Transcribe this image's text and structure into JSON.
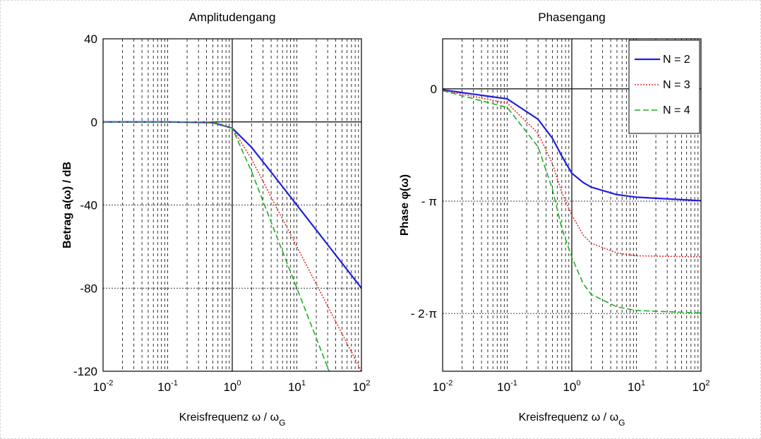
{
  "chart_data": [
    {
      "type": "line",
      "title": "Amplitudengang",
      "xlabel": "Kreisfrequenz ω / ωG",
      "xlabel_parts": {
        "main": "Kreisfrequenz ω / ω",
        "sub": "G"
      },
      "ylabel": "Betrag a(ω) / dB",
      "xscale": "log",
      "xlim": [
        0.01,
        100
      ],
      "ylim": [
        -120,
        40
      ],
      "xticks": [
        {
          "base": "10",
          "exp": "-2"
        },
        {
          "base": "10",
          "exp": "-1"
        },
        {
          "base": "10",
          "exp": "0"
        },
        {
          "base": "10",
          "exp": "1"
        },
        {
          "base": "10",
          "exp": "2"
        }
      ],
      "xtick_values": [
        0.01,
        0.1,
        1,
        10,
        100
      ],
      "yticks": [
        {
          "value": 40,
          "label": "40"
        },
        {
          "value": 0,
          "label": "0"
        },
        {
          "value": -40,
          "label": "-40"
        },
        {
          "value": -80,
          "label": "-80"
        },
        {
          "value": -120,
          "label": "-120"
        }
      ],
      "grid": true,
      "series": [
        {
          "key": "N2",
          "color": "#1f1fe0",
          "dash": "",
          "values": [
            [
              0.01,
              0
            ],
            [
              0.1,
              0
            ],
            [
              0.5,
              -0.3
            ],
            [
              1,
              -3
            ],
            [
              2,
              -12.3
            ],
            [
              5,
              -28
            ],
            [
              10,
              -40
            ],
            [
              100,
              -80
            ]
          ]
        },
        {
          "key": "N3",
          "color": "#e03030",
          "dash": "2,2",
          "values": [
            [
              0.01,
              0
            ],
            [
              0.1,
              0
            ],
            [
              0.5,
              -0.1
            ],
            [
              1,
              -3
            ],
            [
              2,
              -18
            ],
            [
              5,
              -42
            ],
            [
              10,
              -60
            ],
            [
              100,
              -120
            ]
          ]
        },
        {
          "key": "N4",
          "color": "#20b020",
          "dash": "8,4",
          "values": [
            [
              0.01,
              0
            ],
            [
              0.1,
              0
            ],
            [
              0.5,
              0
            ],
            [
              1,
              -3
            ],
            [
              2,
              -24
            ],
            [
              5,
              -56
            ],
            [
              10,
              -80
            ],
            [
              31.6,
              -120
            ]
          ]
        }
      ]
    },
    {
      "type": "line",
      "title": "Phasengang",
      "xlabel": "Kreisfrequenz ω / ωG",
      "xlabel_parts": {
        "main": "Kreisfrequenz ω / ω",
        "sub": "G"
      },
      "ylabel": "Phase φ(ω)",
      "xscale": "log",
      "xlim": [
        0.01,
        100
      ],
      "ylim": [
        -7.9,
        1.4
      ],
      "xticks": [
        {
          "base": "10",
          "exp": "-2"
        },
        {
          "base": "10",
          "exp": "-1"
        },
        {
          "base": "10",
          "exp": "0"
        },
        {
          "base": "10",
          "exp": "1"
        },
        {
          "base": "10",
          "exp": "2"
        }
      ],
      "xtick_values": [
        0.01,
        0.1,
        1,
        10,
        100
      ],
      "yticks": [
        {
          "value": 0,
          "label": "0"
        },
        {
          "value": -3.14159,
          "label": "- π"
        },
        {
          "value": -6.28318,
          "label": "- 2·π"
        }
      ],
      "grid": true,
      "series": [
        {
          "key": "N2",
          "color": "#1f1fe0",
          "dash": "",
          "values": [
            [
              0.01,
              -0.028
            ],
            [
              0.1,
              -0.28
            ],
            [
              0.3,
              -0.85
            ],
            [
              0.5,
              -1.38
            ],
            [
              0.7,
              -1.88
            ],
            [
              1,
              -2.36
            ],
            [
              1.5,
              -2.62
            ],
            [
              2,
              -2.75
            ],
            [
              5,
              -2.96
            ],
            [
              10,
              -3.03
            ],
            [
              100,
              -3.13
            ]
          ]
        },
        {
          "key": "N3",
          "color": "#e03030",
          "dash": "2,2",
          "values": [
            [
              0.01,
              -0.04
            ],
            [
              0.1,
              -0.4
            ],
            [
              0.3,
              -1.24
            ],
            [
              0.5,
              -2.09
            ],
            [
              0.7,
              -2.9
            ],
            [
              1,
              -3.53
            ],
            [
              1.5,
              -4.09
            ],
            [
              2,
              -4.32
            ],
            [
              5,
              -4.59
            ],
            [
              10,
              -4.67
            ],
            [
              100,
              -4.7
            ]
          ]
        },
        {
          "key": "N4",
          "color": "#20b020",
          "dash": "8,4",
          "values": [
            [
              0.01,
              -0.052
            ],
            [
              0.1,
              -0.52
            ],
            [
              0.3,
              -1.62
            ],
            [
              0.5,
              -2.8
            ],
            [
              0.7,
              -3.9
            ],
            [
              1,
              -4.71
            ],
            [
              1.5,
              -5.45
            ],
            [
              2,
              -5.75
            ],
            [
              5,
              -6.1
            ],
            [
              10,
              -6.2
            ],
            [
              100,
              -6.27
            ]
          ]
        }
      ],
      "legend": {
        "placement": "top-right",
        "entries": [
          {
            "key": "N2",
            "label": "N = 2"
          },
          {
            "key": "N3",
            "label": "N = 3"
          },
          {
            "key": "N4",
            "label": "N = 4"
          }
        ]
      }
    }
  ]
}
